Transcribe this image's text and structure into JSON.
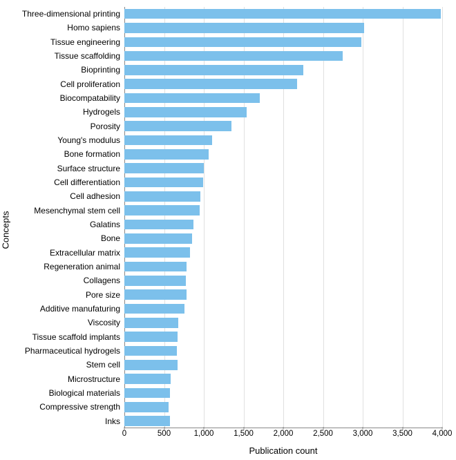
{
  "chart": {
    "type": "bar",
    "orientation": "horizontal",
    "y_axis_title": "Concepts",
    "x_axis_title": "Publication count",
    "y_title_fontsize": 13,
    "x_title_fontsize": 13,
    "tick_fontsize": 11.5,
    "label_fontsize": 12,
    "bar_color": "#7cc0eb",
    "background_color": "#ffffff",
    "grid_color": "rgba(0,0,0,0.12)",
    "axis_color": "#888888",
    "text_color": "#000000",
    "xlim": [
      0,
      4000
    ],
    "xtick_step": 500,
    "xticks": [
      0,
      500,
      1000,
      1500,
      2000,
      2500,
      3000,
      3500,
      4000
    ],
    "xtick_labels": [
      "0",
      "500",
      "1,000",
      "1,500",
      "2,000",
      "2,500",
      "3,000",
      "3,500",
      "4,000"
    ],
    "bar_height_ratio": 0.72,
    "categories": [
      "Three-dimensional printing",
      "Homo sapiens",
      "Tissue engineering",
      "Tissue scaffolding",
      "Bioprinting",
      "Cell proliferation",
      "Biocompatability",
      "Hydrogels",
      "Porosity",
      "Young's modulus",
      "Bone formation",
      "Surface structure",
      "Cell differentiation",
      "Cell adhesion",
      "Mesenchymal stem cell",
      "Galatins",
      "Bone",
      "Extracellular matrix",
      "Regeneration animal",
      "Collagens",
      "Pore size",
      "Additive manufaturing",
      "Viscosity",
      "Tissue scaffold implants",
      "Pharmaceutical hydrogels",
      "Stem cell",
      "Microstructure",
      "Biological materials",
      "Compressive strength",
      "Inks"
    ],
    "values": [
      3980,
      3020,
      2980,
      2750,
      2250,
      2170,
      1700,
      1540,
      1350,
      1100,
      1060,
      1000,
      990,
      960,
      950,
      870,
      850,
      830,
      780,
      770,
      780,
      760,
      680,
      670,
      660,
      670,
      580,
      570,
      560,
      570
    ]
  }
}
